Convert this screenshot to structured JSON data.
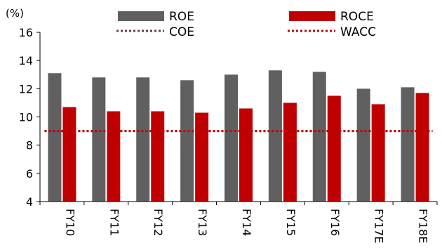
{
  "chart_data": {
    "type": "bar",
    "ylabel": "(%)",
    "ylim": [
      4,
      16
    ],
    "yticks": [
      4,
      6,
      8,
      10,
      12,
      14,
      16
    ],
    "categories": [
      "FY10",
      "FY11",
      "FY12",
      "FY13",
      "FY14",
      "FY15",
      "FY16",
      "FY17E",
      "FY18E"
    ],
    "series": [
      {
        "name": "ROE",
        "kind": "bar",
        "color": "#606060",
        "values": [
          13.1,
          12.8,
          12.8,
          12.6,
          13.0,
          13.3,
          13.2,
          12.0,
          12.1
        ]
      },
      {
        "name": "ROCE",
        "kind": "bar",
        "color": "#c00000",
        "values": [
          10.7,
          10.4,
          10.4,
          10.3,
          10.6,
          11.0,
          11.5,
          10.9,
          11.7
        ]
      },
      {
        "name": "COE",
        "kind": "dotted-line",
        "color": "#6b3a3a",
        "values": [
          9,
          9,
          9,
          9,
          9,
          9,
          9,
          9,
          9
        ]
      },
      {
        "name": "WACC",
        "kind": "dotted-line",
        "color": "#c00000",
        "values": [
          9,
          9,
          9,
          9,
          9,
          9,
          9,
          9,
          9
        ]
      }
    ],
    "legend_placement": "top",
    "grid": false
  }
}
